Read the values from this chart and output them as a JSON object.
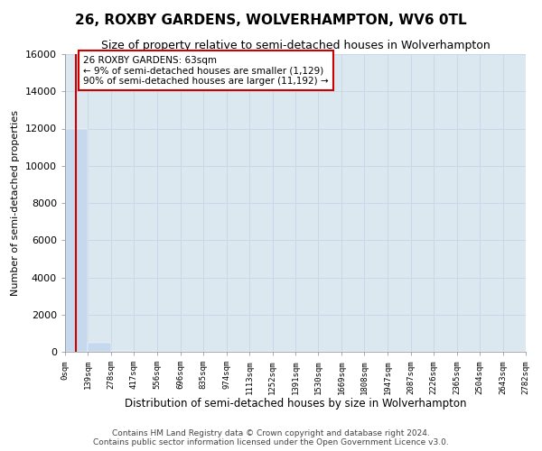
{
  "title": "26, ROXBY GARDENS, WOLVERHAMPTON, WV6 0TL",
  "subtitle": "Size of property relative to semi-detached houses in Wolverhampton",
  "xlabel": "Distribution of semi-detached houses by size in Wolverhampton",
  "ylabel": "Number of semi-detached properties",
  "annotation_line1": "26 ROXBY GARDENS: 63sqm",
  "annotation_line2": "← 9% of semi-detached houses are smaller (1,129)",
  "annotation_line3": "90% of semi-detached houses are larger (11,192) →",
  "footer_line1": "Contains HM Land Registry data © Crown copyright and database right 2024.",
  "footer_line2": "Contains public sector information licensed under the Open Government Licence v3.0.",
  "bin_edges": [
    0,
    139,
    278,
    417,
    556,
    696,
    835,
    974,
    1113,
    1252,
    1391,
    1530,
    1669,
    1808,
    1947,
    2087,
    2226,
    2365,
    2504,
    2643,
    2782
  ],
  "bin_labels": [
    "0sqm",
    "139sqm",
    "278sqm",
    "417sqm",
    "556sqm",
    "696sqm",
    "835sqm",
    "974sqm",
    "1113sqm",
    "1252sqm",
    "1391sqm",
    "1530sqm",
    "1669sqm",
    "1808sqm",
    "1947sqm",
    "2087sqm",
    "2226sqm",
    "2365sqm",
    "2504sqm",
    "2643sqm",
    "2782sqm"
  ],
  "bar_heights": [
    12000,
    500,
    50,
    20,
    10,
    5,
    3,
    2,
    2,
    1,
    1,
    1,
    1,
    1,
    0,
    0,
    0,
    0,
    0,
    0
  ],
  "bar_color": "#c5d8ee",
  "red_line_x": 63,
  "ylim": [
    0,
    16000
  ],
  "yticks": [
    0,
    2000,
    4000,
    6000,
    8000,
    10000,
    12000,
    14000,
    16000
  ],
  "annotation_box_color": "#ffffff",
  "annotation_border_color": "#cc0000",
  "red_line_color": "#cc0000",
  "grid_color": "#c8d8e8",
  "bg_color": "#dce8f0",
  "title_fontsize": 11,
  "subtitle_fontsize": 9
}
